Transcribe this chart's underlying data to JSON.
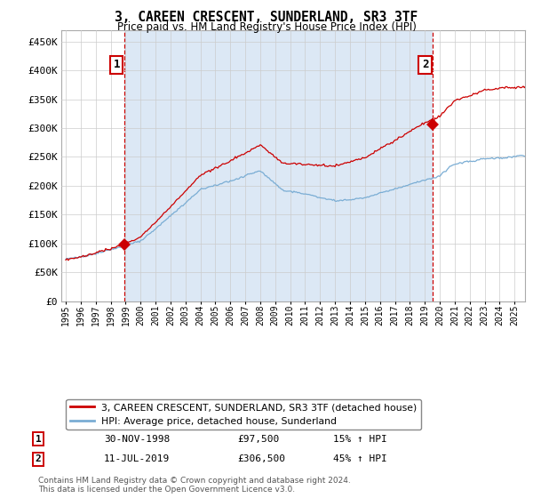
{
  "title": "3, CAREEN CRESCENT, SUNDERLAND, SR3 3TF",
  "subtitle": "Price paid vs. HM Land Registry's House Price Index (HPI)",
  "ylim": [
    0,
    450000
  ],
  "yticks": [
    0,
    50000,
    100000,
    150000,
    200000,
    250000,
    300000,
    350000,
    400000,
    450000
  ],
  "hpi_color": "#7aadd4",
  "price_color": "#cc0000",
  "marker_color": "#cc0000",
  "bg_fill_color": "#dce8f5",
  "background_color": "#ffffff",
  "grid_color": "#cccccc",
  "legend_label_price": "3, CAREEN CRESCENT, SUNDERLAND, SR3 3TF (detached house)",
  "legend_label_hpi": "HPI: Average price, detached house, Sunderland",
  "sale1_date": "30-NOV-1998",
  "sale1_price": "£97,500",
  "sale1_hpi": "15% ↑ HPI",
  "sale2_date": "11-JUL-2019",
  "sale2_price": "£306,500",
  "sale2_hpi": "45% ↑ HPI",
  "footer": "Contains HM Land Registry data © Crown copyright and database right 2024.\nThis data is licensed under the Open Government Licence v3.0.",
  "sale1_year": 1998.917,
  "sale1_value": 97500,
  "sale2_year": 2019.542,
  "sale2_value": 306500,
  "xmin": 1995,
  "xmax": 2025
}
